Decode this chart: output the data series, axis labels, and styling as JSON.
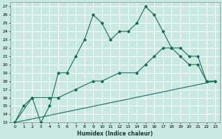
{
  "title": "",
  "xlabel": "Humidex (Indice chaleur)",
  "ylabel": "",
  "xlim": [
    -0.5,
    23.5
  ],
  "ylim": [
    13,
    27.5
  ],
  "yticks": [
    13,
    14,
    15,
    16,
    17,
    18,
    19,
    20,
    21,
    22,
    23,
    24,
    25,
    26,
    27
  ],
  "xticks": [
    0,
    1,
    2,
    3,
    4,
    5,
    6,
    7,
    8,
    9,
    10,
    11,
    12,
    13,
    14,
    15,
    16,
    17,
    18,
    19,
    20,
    21,
    22,
    23
  ],
  "bg_color": "#c8e8e0",
  "grid_color": "#ffffff",
  "line_color": "#1a6b5a",
  "line1_x": [
    0,
    1,
    2,
    3,
    4,
    5,
    6,
    7,
    8,
    9,
    10,
    11,
    12,
    13,
    14,
    15,
    16,
    17,
    18,
    19,
    20,
    21,
    22,
    23
  ],
  "line1_y": [
    13,
    15,
    16,
    13,
    15,
    19,
    19,
    21,
    23,
    26,
    25,
    23,
    24,
    24,
    25,
    27,
    26,
    24,
    22,
    21,
    20,
    20,
    18,
    18
  ],
  "line2_x": [
    0,
    2,
    4,
    5,
    7,
    9,
    10,
    12,
    14,
    15,
    16,
    17,
    18,
    19,
    20,
    21,
    22,
    23
  ],
  "line2_y": [
    13,
    16,
    16,
    16,
    17,
    18,
    18,
    19,
    19,
    20,
    21,
    22,
    22,
    22,
    21,
    21,
    18,
    18
  ],
  "line3_x": [
    0,
    23
  ],
  "line3_y": [
    13,
    18
  ]
}
